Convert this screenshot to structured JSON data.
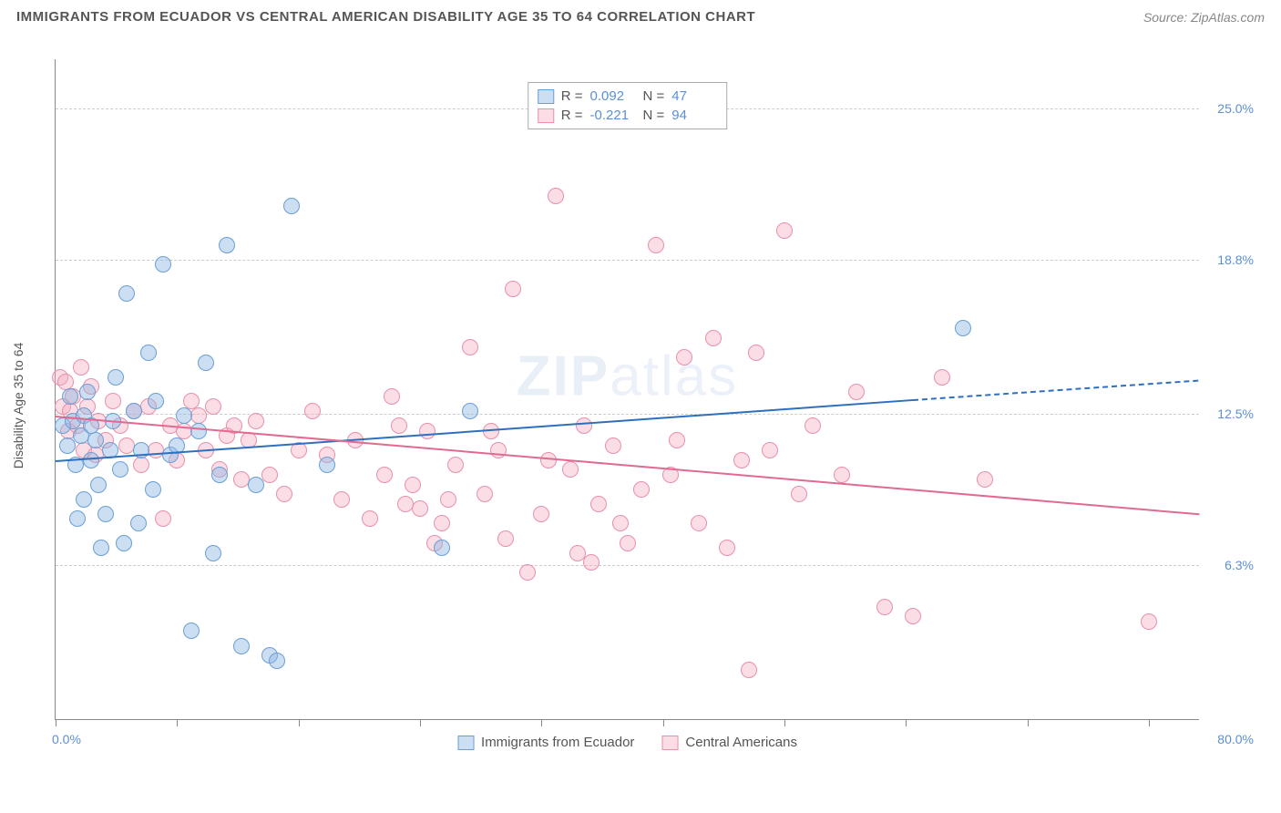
{
  "header": {
    "title": "IMMIGRANTS FROM ECUADOR VS CENTRAL AMERICAN DISABILITY AGE 35 TO 64 CORRELATION CHART",
    "source": "Source: ZipAtlas.com"
  },
  "watermark": {
    "bold": "ZIP",
    "thin": "atlas"
  },
  "chart": {
    "type": "scatter",
    "yaxis_title": "Disability Age 35 to 64",
    "xlim": [
      0,
      80
    ],
    "ylim": [
      0,
      27
    ],
    "x_start_label": "0.0%",
    "x_end_label": "80.0%",
    "xtick_positions": [
      0,
      8.5,
      17,
      25.5,
      34,
      42.5,
      51,
      59.5,
      68,
      76.5
    ],
    "ygrid": [
      {
        "y": 6.3,
        "label": "6.3%"
      },
      {
        "y": 12.5,
        "label": "12.5%"
      },
      {
        "y": 18.8,
        "label": "18.8%"
      },
      {
        "y": 25.0,
        "label": "25.0%"
      }
    ],
    "background_color": "#ffffff",
    "grid_color": "#cccccc",
    "axis_color": "#888888",
    "tick_label_color": "#5b8fd6",
    "marker_radius": 9,
    "marker_border_width": 1.2,
    "series": [
      {
        "name": "Immigrants from Ecuador",
        "fill": "rgba(143,182,227,0.45)",
        "stroke": "#6a9fd4",
        "trend_color": "#2e6fc0",
        "stats": {
          "R": "0.092",
          "N": "47"
        },
        "trend": {
          "x1": 0,
          "y1": 10.6,
          "x2": 60,
          "y2": 13.1,
          "x2_dash": 80,
          "y2_dash": 13.9
        },
        "points": [
          [
            0.5,
            12.0
          ],
          [
            0.8,
            11.2
          ],
          [
            1.0,
            13.2
          ],
          [
            1.2,
            12.2
          ],
          [
            1.4,
            10.4
          ],
          [
            1.5,
            8.2
          ],
          [
            1.8,
            11.6
          ],
          [
            2.0,
            12.4
          ],
          [
            2.0,
            9.0
          ],
          [
            2.2,
            13.4
          ],
          [
            2.5,
            12.0
          ],
          [
            2.5,
            10.6
          ],
          [
            2.8,
            11.4
          ],
          [
            3.0,
            9.6
          ],
          [
            3.2,
            7.0
          ],
          [
            3.5,
            8.4
          ],
          [
            3.8,
            11.0
          ],
          [
            4.0,
            12.2
          ],
          [
            4.2,
            14.0
          ],
          [
            4.5,
            10.2
          ],
          [
            4.8,
            7.2
          ],
          [
            5.0,
            17.4
          ],
          [
            5.5,
            12.6
          ],
          [
            5.8,
            8.0
          ],
          [
            6.0,
            11.0
          ],
          [
            6.5,
            15.0
          ],
          [
            6.8,
            9.4
          ],
          [
            7.0,
            13.0
          ],
          [
            7.5,
            18.6
          ],
          [
            8.0,
            10.8
          ],
          [
            8.5,
            11.2
          ],
          [
            9.0,
            12.4
          ],
          [
            9.5,
            3.6
          ],
          [
            10.0,
            11.8
          ],
          [
            10.5,
            14.6
          ],
          [
            11.0,
            6.8
          ],
          [
            11.5,
            10.0
          ],
          [
            12.0,
            19.4
          ],
          [
            13.0,
            3.0
          ],
          [
            14.0,
            9.6
          ],
          [
            15.0,
            2.6
          ],
          [
            15.5,
            2.4
          ],
          [
            16.5,
            21.0
          ],
          [
            19.0,
            10.4
          ],
          [
            27.0,
            7.0
          ],
          [
            63.5,
            16.0
          ],
          [
            29.0,
            12.6
          ]
        ]
      },
      {
        "name": "Central Americans",
        "fill": "rgba(242,170,190,0.40)",
        "stroke": "#e890aa",
        "trend_color": "#e06a91",
        "stats": {
          "R": "-0.221",
          "N": "94"
        },
        "trend": {
          "x1": 0,
          "y1": 12.4,
          "x2": 80,
          "y2": 8.4
        },
        "points": [
          [
            0.3,
            14.0
          ],
          [
            0.5,
            12.8
          ],
          [
            0.7,
            13.8
          ],
          [
            0.9,
            11.8
          ],
          [
            1.0,
            12.6
          ],
          [
            1.2,
            13.2
          ],
          [
            1.5,
            12.0
          ],
          [
            1.8,
            14.4
          ],
          [
            2.0,
            11.0
          ],
          [
            2.2,
            12.8
          ],
          [
            2.5,
            13.6
          ],
          [
            2.8,
            10.8
          ],
          [
            3.0,
            12.2
          ],
          [
            3.5,
            11.4
          ],
          [
            4.0,
            13.0
          ],
          [
            4.5,
            12.0
          ],
          [
            5.0,
            11.2
          ],
          [
            5.5,
            12.6
          ],
          [
            6.0,
            10.4
          ],
          [
            6.5,
            12.8
          ],
          [
            7.0,
            11.0
          ],
          [
            7.5,
            8.2
          ],
          [
            8.0,
            12.0
          ],
          [
            8.5,
            10.6
          ],
          [
            9.0,
            11.8
          ],
          [
            9.5,
            13.0
          ],
          [
            10.0,
            12.4
          ],
          [
            10.5,
            11.0
          ],
          [
            11.0,
            12.8
          ],
          [
            11.5,
            10.2
          ],
          [
            12.0,
            11.6
          ],
          [
            12.5,
            12.0
          ],
          [
            13.0,
            9.8
          ],
          [
            13.5,
            11.4
          ],
          [
            14.0,
            12.2
          ],
          [
            15.0,
            10.0
          ],
          [
            16.0,
            9.2
          ],
          [
            17.0,
            11.0
          ],
          [
            18.0,
            12.6
          ],
          [
            19.0,
            10.8
          ],
          [
            20.0,
            9.0
          ],
          [
            21.0,
            11.4
          ],
          [
            22.0,
            8.2
          ],
          [
            23.0,
            10.0
          ],
          [
            24.0,
            12.0
          ],
          [
            25.0,
            9.6
          ],
          [
            26.0,
            11.8
          ],
          [
            27.0,
            8.0
          ],
          [
            28.0,
            10.4
          ],
          [
            29.0,
            15.2
          ],
          [
            30.0,
            9.2
          ],
          [
            31.0,
            11.0
          ],
          [
            32.0,
            17.6
          ],
          [
            33.0,
            6.0
          ],
          [
            34.0,
            8.4
          ],
          [
            35.0,
            21.4
          ],
          [
            36.0,
            10.2
          ],
          [
            37.0,
            12.0
          ],
          [
            37.5,
            6.4
          ],
          [
            38.0,
            8.8
          ],
          [
            39.0,
            11.2
          ],
          [
            40.0,
            7.2
          ],
          [
            41.0,
            9.4
          ],
          [
            42.0,
            19.4
          ],
          [
            43.0,
            10.0
          ],
          [
            44.0,
            14.8
          ],
          [
            45.0,
            8.0
          ],
          [
            46.0,
            15.6
          ],
          [
            47.0,
            7.0
          ],
          [
            48.0,
            10.6
          ],
          [
            48.5,
            2.0
          ],
          [
            49.0,
            15.0
          ],
          [
            50.0,
            11.0
          ],
          [
            51.0,
            20.0
          ],
          [
            52.0,
            9.2
          ],
          [
            53.0,
            12.0
          ],
          [
            55.0,
            10.0
          ],
          [
            56.0,
            13.4
          ],
          [
            58.0,
            4.6
          ],
          [
            60.0,
            4.2
          ],
          [
            62.0,
            14.0
          ],
          [
            65.0,
            9.8
          ],
          [
            76.5,
            4.0
          ],
          [
            25.5,
            8.6
          ],
          [
            26.5,
            7.2
          ],
          [
            27.5,
            9.0
          ],
          [
            23.5,
            13.2
          ],
          [
            24.5,
            8.8
          ],
          [
            30.5,
            11.8
          ],
          [
            31.5,
            7.4
          ],
          [
            34.5,
            10.6
          ],
          [
            36.5,
            6.8
          ],
          [
            39.5,
            8.0
          ],
          [
            43.5,
            11.4
          ]
        ]
      }
    ],
    "stats_box": {
      "r_label": "R  =",
      "n_label": "N  ="
    },
    "legend_labels": [
      "Immigrants from Ecuador",
      "Central Americans"
    ]
  }
}
